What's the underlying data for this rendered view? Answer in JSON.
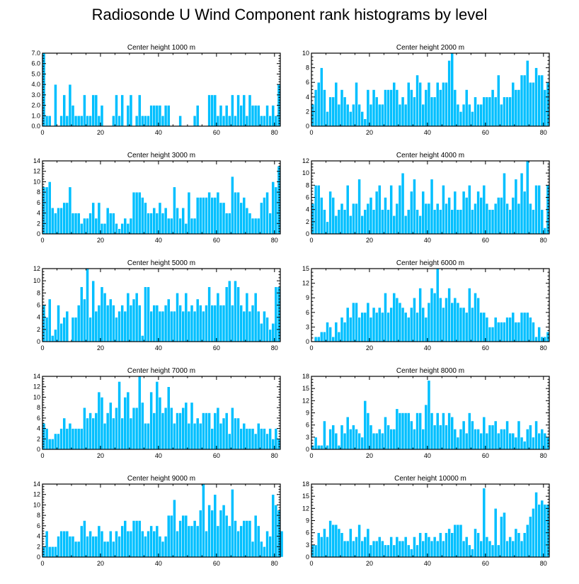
{
  "figure": {
    "title": "Radiosonde U Wind Component rank histograms by level"
  },
  "style": {
    "bar_fill": "#00BFFF",
    "bar_edge": "#ffffff",
    "axis": "#000000"
  },
  "chart_data": [
    {
      "type": "bar",
      "title": "Center height 1000 m",
      "xlim": [
        0,
        82
      ],
      "ylim": [
        0,
        7
      ],
      "xticks": [
        0,
        20,
        40,
        60,
        80
      ],
      "yticks": [
        0,
        1,
        2,
        3,
        4,
        5,
        6,
        7
      ],
      "ytick_labels": [
        "0.0",
        "1.0",
        "2.0",
        "3.0",
        "4.0",
        "5.0",
        "6.0",
        "7.0"
      ],
      "values": [
        7,
        1,
        1,
        0,
        4,
        0,
        1,
        3,
        1,
        4,
        2,
        1,
        1,
        1,
        3,
        1,
        1,
        3,
        3,
        1,
        2,
        0,
        0,
        0,
        1,
        3,
        1,
        3,
        0,
        2,
        3,
        0,
        1,
        3,
        1,
        1,
        1,
        2,
        2,
        2,
        2,
        1,
        2,
        2,
        0,
        0,
        0,
        1,
        0,
        0,
        0,
        0,
        1,
        2,
        0,
        0,
        0,
        3,
        3,
        3,
        1,
        2,
        1,
        2,
        1,
        3,
        1,
        3,
        2,
        3,
        1,
        3,
        2,
        2,
        2,
        1,
        1,
        2,
        1,
        2,
        1,
        4
      ]
    },
    {
      "type": "bar",
      "title": "Center height 2000 m",
      "xlim": [
        0,
        82
      ],
      "ylim": [
        0,
        10
      ],
      "xticks": [
        0,
        20,
        40,
        60,
        80
      ],
      "yticks": [
        0,
        2,
        4,
        6,
        8,
        10
      ],
      "ytick_labels": [
        "0",
        "2",
        "4",
        "6",
        "8",
        "10"
      ],
      "values": [
        3,
        5,
        6,
        8,
        5,
        2,
        4,
        4,
        6,
        3,
        5,
        4,
        3,
        2,
        3,
        6,
        3,
        2,
        1,
        5,
        3,
        5,
        4,
        3,
        3,
        5,
        5,
        5,
        6,
        5,
        3,
        4,
        3,
        6,
        5,
        4,
        7,
        6,
        3,
        5,
        6,
        4,
        4,
        6,
        5,
        6,
        6,
        9,
        10,
        5,
        3,
        2,
        3,
        5,
        3,
        2,
        4,
        3,
        3,
        4,
        4,
        4,
        5,
        4,
        7,
        3,
        4,
        4,
        4,
        6,
        5,
        5,
        7,
        7,
        9,
        6,
        6,
        8,
        7,
        7,
        5,
        6
      ]
    },
    {
      "type": "bar",
      "title": "Center height 3000 m",
      "xlim": [
        0,
        82
      ],
      "ylim": [
        0,
        14
      ],
      "xticks": [
        0,
        20,
        40,
        60,
        80
      ],
      "yticks": [
        0,
        2,
        4,
        6,
        8,
        10,
        12,
        14
      ],
      "ytick_labels": [
        "0",
        "2",
        "4",
        "6",
        "8",
        "10",
        "12",
        "14"
      ],
      "values": [
        9,
        9,
        10,
        5,
        4,
        5,
        5,
        6,
        6,
        9,
        4,
        4,
        4,
        2,
        3,
        3,
        4,
        6,
        3,
        6,
        2,
        2,
        5,
        4,
        4,
        2,
        1,
        2,
        3,
        2,
        3,
        8,
        8,
        8,
        7,
        6,
        4,
        4,
        5,
        4,
        6,
        4,
        5,
        3,
        3,
        9,
        5,
        3,
        5,
        2,
        8,
        3,
        3,
        7,
        7,
        7,
        7,
        8,
        7,
        7,
        8,
        6,
        6,
        4,
        4,
        11,
        8,
        8,
        6,
        7,
        5,
        4,
        3,
        3,
        3,
        6,
        7,
        8,
        4,
        10,
        9,
        13
      ]
    },
    {
      "type": "bar",
      "title": "Center height 4000 m",
      "xlim": [
        0,
        82
      ],
      "ylim": [
        0,
        12
      ],
      "xticks": [
        0,
        20,
        40,
        60,
        80
      ],
      "yticks": [
        0,
        2,
        4,
        6,
        8,
        10,
        12
      ],
      "ytick_labels": [
        "0",
        "2",
        "4",
        "6",
        "8",
        "10",
        "12"
      ],
      "values": [
        5,
        8,
        8,
        6,
        4,
        2,
        7,
        6,
        3,
        4,
        5,
        4,
        8,
        3,
        5,
        5,
        9,
        3,
        4,
        5,
        6,
        4,
        7,
        8,
        4,
        6,
        4,
        8,
        3,
        5,
        8,
        10,
        3,
        4,
        7,
        9,
        4,
        3,
        7,
        5,
        5,
        9,
        4,
        5,
        4,
        8,
        5,
        6,
        4,
        7,
        4,
        4,
        7,
        6,
        8,
        4,
        5,
        7,
        6,
        8,
        5,
        4,
        4,
        5,
        6,
        6,
        10,
        5,
        4,
        6,
        9,
        5,
        10,
        7,
        12,
        5,
        4,
        8,
        8,
        4,
        1,
        8
      ]
    },
    {
      "type": "bar",
      "title": "Center height 5000 m",
      "xlim": [
        0,
        82
      ],
      "ylim": [
        0,
        12
      ],
      "xticks": [
        0,
        20,
        40,
        60,
        80
      ],
      "yticks": [
        0,
        2,
        4,
        6,
        8,
        10,
        12
      ],
      "ytick_labels": [
        "0",
        "2",
        "4",
        "6",
        "8",
        "10",
        "12"
      ],
      "values": [
        6,
        4,
        7,
        1,
        2,
        6,
        3,
        4,
        5,
        0,
        4,
        4,
        6,
        9,
        7,
        12,
        4,
        10,
        5,
        6,
        9,
        8,
        6,
        7,
        6,
        4,
        5,
        6,
        5,
        8,
        6,
        7,
        8,
        6,
        1,
        9,
        9,
        5,
        6,
        6,
        5,
        5,
        6,
        7,
        5,
        5,
        8,
        6,
        5,
        8,
        5,
        6,
        5,
        7,
        6,
        5,
        6,
        9,
        6,
        6,
        8,
        6,
        6,
        9,
        10,
        6,
        10,
        9,
        6,
        5,
        8,
        5,
        6,
        8,
        5,
        3,
        5,
        4,
        2,
        3,
        9,
        9
      ]
    },
    {
      "type": "bar",
      "title": "Center height 6000 m",
      "xlim": [
        0,
        82
      ],
      "ylim": [
        0,
        15
      ],
      "xticks": [
        0,
        20,
        40,
        60,
        80
      ],
      "yticks": [
        0,
        3,
        6,
        9,
        12,
        15
      ],
      "ytick_labels": [
        "0",
        "3",
        "6",
        "9",
        "12",
        "15"
      ],
      "values": [
        0,
        1,
        1,
        2,
        2,
        4,
        3,
        1,
        4,
        2,
        5,
        4,
        7,
        5,
        8,
        8,
        5,
        6,
        6,
        8,
        5,
        7,
        6,
        7,
        6,
        10,
        6,
        7,
        10,
        9,
        8,
        7,
        6,
        5,
        7,
        9,
        6,
        11,
        7,
        5,
        8,
        11,
        10,
        15,
        9,
        7,
        9,
        11,
        8,
        9,
        8,
        7,
        7,
        6,
        11,
        7,
        10,
        9,
        6,
        6,
        5,
        3,
        3,
        5,
        4,
        4,
        4,
        5,
        5,
        6,
        4,
        4,
        6,
        6,
        6,
        5,
        4,
        1,
        3,
        1,
        1,
        2
      ]
    },
    {
      "type": "bar",
      "title": "Center height 7000 m",
      "xlim": [
        0,
        82
      ],
      "ylim": [
        0,
        14
      ],
      "xticks": [
        0,
        20,
        40,
        60,
        80
      ],
      "yticks": [
        0,
        2,
        4,
        6,
        8,
        10,
        12,
        14
      ],
      "ytick_labels": [
        "0",
        "2",
        "4",
        "6",
        "8",
        "10",
        "12",
        "14"
      ],
      "values": [
        5,
        4,
        2,
        2,
        3,
        3,
        4,
        6,
        4,
        5,
        4,
        4,
        4,
        4,
        8,
        6,
        7,
        6,
        7,
        11,
        10,
        5,
        7,
        9,
        6,
        8,
        13,
        6,
        10,
        11,
        6,
        8,
        8,
        14,
        9,
        5,
        5,
        11,
        7,
        13,
        10,
        7,
        8,
        12,
        8,
        5,
        7,
        7,
        8,
        9,
        5,
        9,
        5,
        6,
        5,
        7,
        7,
        7,
        4,
        7,
        8,
        5,
        6,
        7,
        3,
        8,
        6,
        6,
        4,
        5,
        4,
        4,
        4,
        3,
        5,
        4,
        4,
        3,
        4,
        2,
        4,
        2
      ]
    },
    {
      "type": "bar",
      "title": "Center height 8000 m",
      "xlim": [
        0,
        82
      ],
      "ylim": [
        0,
        18
      ],
      "xticks": [
        0,
        20,
        40,
        60,
        80
      ],
      "yticks": [
        0,
        3,
        6,
        9,
        12,
        15,
        18
      ],
      "ytick_labels": [
        "0",
        "3",
        "6",
        "9",
        "12",
        "15",
        "18"
      ],
      "values": [
        1,
        3,
        1,
        1,
        7,
        1,
        5,
        6,
        4,
        1,
        6,
        4,
        8,
        5,
        6,
        5,
        4,
        3,
        12,
        9,
        6,
        4,
        4,
        5,
        4,
        8,
        6,
        5,
        5,
        10,
        9,
        9,
        9,
        9,
        7,
        5,
        9,
        9,
        5,
        11,
        17,
        9,
        6,
        9,
        6,
        9,
        6,
        9,
        8,
        5,
        3,
        5,
        7,
        4,
        9,
        7,
        5,
        5,
        4,
        8,
        4,
        6,
        6,
        7,
        4,
        5,
        5,
        7,
        4,
        4,
        3,
        7,
        3,
        2,
        5,
        6,
        3,
        7,
        4,
        5,
        4,
        3
      ]
    },
    {
      "type": "bar",
      "title": "Center height 9000 m",
      "xlim": [
        0,
        82
      ],
      "ylim": [
        0,
        14
      ],
      "xticks": [
        0,
        20,
        40,
        60,
        80
      ],
      "yticks": [
        0,
        2,
        4,
        6,
        8,
        10,
        12,
        14
      ],
      "ytick_labels": [
        "0",
        "2",
        "4",
        "6",
        "8",
        "10",
        "12",
        "14"
      ],
      "values": [
        2,
        5,
        2,
        2,
        2,
        4,
        5,
        5,
        5,
        4,
        4,
        3,
        3,
        6,
        7,
        4,
        5,
        4,
        4,
        6,
        5,
        3,
        3,
        5,
        3,
        5,
        4,
        6,
        7,
        5,
        5,
        7,
        7,
        7,
        5,
        4,
        5,
        6,
        5,
        6,
        4,
        3,
        4,
        8,
        8,
        11,
        5,
        7,
        8,
        8,
        6,
        6,
        7,
        6,
        9,
        14,
        5,
        10,
        9,
        12,
        6,
        9,
        10,
        8,
        6,
        13,
        7,
        5,
        6,
        7,
        7,
        7,
        3,
        8,
        6,
        3,
        2,
        5,
        4,
        12,
        10,
        9,
        5
      ]
    },
    {
      "type": "bar",
      "title": "Center height 10000 m",
      "xlim": [
        0,
        82
      ],
      "ylim": [
        0,
        18
      ],
      "xticks": [
        0,
        20,
        40,
        60,
        80
      ],
      "yticks": [
        0,
        3,
        6,
        9,
        12,
        15,
        18
      ],
      "ytick_labels": [
        "0",
        "3",
        "6",
        "9",
        "12",
        "15",
        "18"
      ],
      "values": [
        3,
        3,
        6,
        5,
        7,
        5,
        9,
        8,
        8,
        7,
        6,
        4,
        4,
        7,
        4,
        5,
        8,
        4,
        5,
        7,
        3,
        4,
        4,
        5,
        4,
        3,
        3,
        5,
        3,
        5,
        4,
        4,
        5,
        3,
        2,
        5,
        3,
        6,
        4,
        6,
        5,
        4,
        5,
        4,
        6,
        4,
        6,
        7,
        6,
        8,
        8,
        8,
        4,
        5,
        3,
        2,
        7,
        6,
        4,
        17,
        5,
        4,
        3,
        12,
        3,
        10,
        11,
        4,
        5,
        4,
        7,
        6,
        4,
        6,
        8,
        10,
        12,
        16,
        13,
        14,
        13,
        13
      ]
    }
  ]
}
